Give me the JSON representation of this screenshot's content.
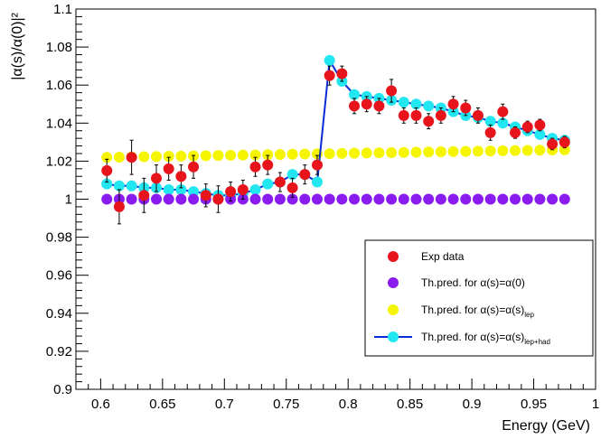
{
  "chart_data": {
    "type": "scatter",
    "title": "",
    "xlabel": "Energy (GeV)",
    "ylabel": "|α(s)/α(0)|²",
    "xlim": [
      0.58,
      1.0
    ],
    "ylim": [
      0.9,
      1.1
    ],
    "x_ticks": [
      "0.6",
      "0.65",
      "0.7",
      "0.75",
      "0.8",
      "0.85",
      "0.9",
      "0.95",
      "1"
    ],
    "y_ticks": [
      "0.9",
      "0.92",
      "0.94",
      "0.96",
      "0.98",
      "1",
      "1.02",
      "1.04",
      "1.06",
      "1.08",
      "1.1"
    ],
    "grid": false,
    "legend_position": "bottom-right",
    "series": [
      {
        "name": "Exp data",
        "marker": "circle",
        "color": "#e8141c",
        "points": [
          {
            "x": 0.605,
            "y": 1.015,
            "err": 0.006
          },
          {
            "x": 0.615,
            "y": 0.996,
            "err": 0.009
          },
          {
            "x": 0.625,
            "y": 1.022,
            "err": 0.009
          },
          {
            "x": 0.635,
            "y": 1.002,
            "err": 0.009
          },
          {
            "x": 0.645,
            "y": 1.011,
            "err": 0.007
          },
          {
            "x": 0.655,
            "y": 1.016,
            "err": 0.006
          },
          {
            "x": 0.665,
            "y": 1.012,
            "err": 0.006
          },
          {
            "x": 0.675,
            "y": 1.017,
            "err": 0.006
          },
          {
            "x": 0.685,
            "y": 1.002,
            "err": 0.006
          },
          {
            "x": 0.695,
            "y": 1.0,
            "err": 0.007
          },
          {
            "x": 0.705,
            "y": 1.004,
            "err": 0.005
          },
          {
            "x": 0.715,
            "y": 1.005,
            "err": 0.005
          },
          {
            "x": 0.725,
            "y": 1.017,
            "err": 0.005
          },
          {
            "x": 0.735,
            "y": 1.018,
            "err": 0.005
          },
          {
            "x": 0.745,
            "y": 1.009,
            "err": 0.005
          },
          {
            "x": 0.755,
            "y": 1.006,
            "err": 0.005
          },
          {
            "x": 0.765,
            "y": 1.013,
            "err": 0.005
          },
          {
            "x": 0.775,
            "y": 1.018,
            "err": 0.005
          },
          {
            "x": 0.785,
            "y": 1.065,
            "err": 0.005
          },
          {
            "x": 0.795,
            "y": 1.066,
            "err": 0.004
          },
          {
            "x": 0.805,
            "y": 1.049,
            "err": 0.004
          },
          {
            "x": 0.815,
            "y": 1.05,
            "err": 0.004
          },
          {
            "x": 0.825,
            "y": 1.049,
            "err": 0.004
          },
          {
            "x": 0.835,
            "y": 1.057,
            "err": 0.006
          },
          {
            "x": 0.845,
            "y": 1.044,
            "err": 0.004
          },
          {
            "x": 0.855,
            "y": 1.044,
            "err": 0.004
          },
          {
            "x": 0.865,
            "y": 1.041,
            "err": 0.004
          },
          {
            "x": 0.875,
            "y": 1.044,
            "err": 0.004
          },
          {
            "x": 0.885,
            "y": 1.05,
            "err": 0.004
          },
          {
            "x": 0.895,
            "y": 1.048,
            "err": 0.004
          },
          {
            "x": 0.905,
            "y": 1.044,
            "err": 0.004
          },
          {
            "x": 0.915,
            "y": 1.035,
            "err": 0.004
          },
          {
            "x": 0.925,
            "y": 1.046,
            "err": 0.004
          },
          {
            "x": 0.935,
            "y": 1.035,
            "err": 0.003
          },
          {
            "x": 0.945,
            "y": 1.038,
            "err": 0.003
          },
          {
            "x": 0.955,
            "y": 1.039,
            "err": 0.003
          },
          {
            "x": 0.965,
            "y": 1.029,
            "err": 0.003
          },
          {
            "x": 0.975,
            "y": 1.03,
            "err": 0.003
          }
        ]
      },
      {
        "name": "Th.pred. for α(s)=α(0)",
        "marker": "circle",
        "color": "#8a1cf0",
        "x_start": 0.605,
        "x_end": 0.975,
        "x_step": 0.01,
        "y_start": 1.0,
        "y_end": 1.0
      },
      {
        "name": "Th.pred. for α(s)=α(s)",
        "name_subscript": "lep",
        "marker": "circle",
        "color": "#f5f500",
        "x_start": 0.605,
        "x_end": 0.975,
        "x_step": 0.01,
        "y_start": 1.022,
        "y_end": 1.026
      },
      {
        "name": "Th.pred. for α(s)=α(s)",
        "name_subscript": "lep+had",
        "marker": "circle",
        "color": "#22e6f0",
        "line_color": "#0a2ad8",
        "points": [
          {
            "x": 0.605,
            "y": 1.008
          },
          {
            "x": 0.615,
            "y": 1.007
          },
          {
            "x": 0.625,
            "y": 1.007
          },
          {
            "x": 0.635,
            "y": 1.006
          },
          {
            "x": 0.645,
            "y": 1.006
          },
          {
            "x": 0.655,
            "y": 1.005
          },
          {
            "x": 0.665,
            "y": 1.005
          },
          {
            "x": 0.675,
            "y": 1.004
          },
          {
            "x": 0.685,
            "y": 1.003
          },
          {
            "x": 0.695,
            "y": 1.002
          },
          {
            "x": 0.705,
            "y": 1.002
          },
          {
            "x": 0.715,
            "y": 1.003
          },
          {
            "x": 0.725,
            "y": 1.005
          },
          {
            "x": 0.735,
            "y": 1.008
          },
          {
            "x": 0.745,
            "y": 1.009
          },
          {
            "x": 0.755,
            "y": 1.013
          },
          {
            "x": 0.765,
            "y": 1.013
          },
          {
            "x": 0.775,
            "y": 1.009
          },
          {
            "x": 0.785,
            "y": 1.073
          },
          {
            "x": 0.795,
            "y": 1.062
          },
          {
            "x": 0.805,
            "y": 1.055
          },
          {
            "x": 0.815,
            "y": 1.054
          },
          {
            "x": 0.825,
            "y": 1.053
          },
          {
            "x": 0.835,
            "y": 1.052
          },
          {
            "x": 0.845,
            "y": 1.051
          },
          {
            "x": 0.855,
            "y": 1.05
          },
          {
            "x": 0.865,
            "y": 1.049
          },
          {
            "x": 0.875,
            "y": 1.048
          },
          {
            "x": 0.885,
            "y": 1.046
          },
          {
            "x": 0.895,
            "y": 1.044
          },
          {
            "x": 0.905,
            "y": 1.043
          },
          {
            "x": 0.915,
            "y": 1.041
          },
          {
            "x": 0.925,
            "y": 1.04
          },
          {
            "x": 0.935,
            "y": 1.038
          },
          {
            "x": 0.945,
            "y": 1.036
          },
          {
            "x": 0.955,
            "y": 1.034
          },
          {
            "x": 0.965,
            "y": 1.032
          },
          {
            "x": 0.975,
            "y": 1.031
          }
        ]
      }
    ]
  }
}
